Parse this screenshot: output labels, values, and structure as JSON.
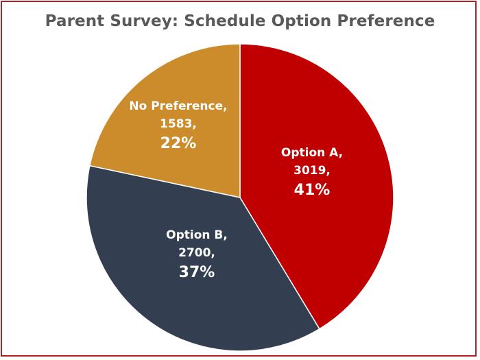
{
  "chart_data": {
    "type": "pie",
    "title": "Parent Survey: Schedule Option Preference",
    "slices": [
      {
        "label": "Option A",
        "value": 3019,
        "percent_label": "41%",
        "color": "#c00000"
      },
      {
        "label": "Option B",
        "value": 2700,
        "percent_label": "37%",
        "color": "#333f50"
      },
      {
        "label": "No Preference",
        "value": 1583,
        "percent_label": "22%",
        "color": "#cc8c2b"
      }
    ],
    "start_angle_deg": 0,
    "direction": "clockwise"
  },
  "colors": {
    "border": "#b51f24",
    "title": "#595959",
    "label": "#ffffff"
  }
}
